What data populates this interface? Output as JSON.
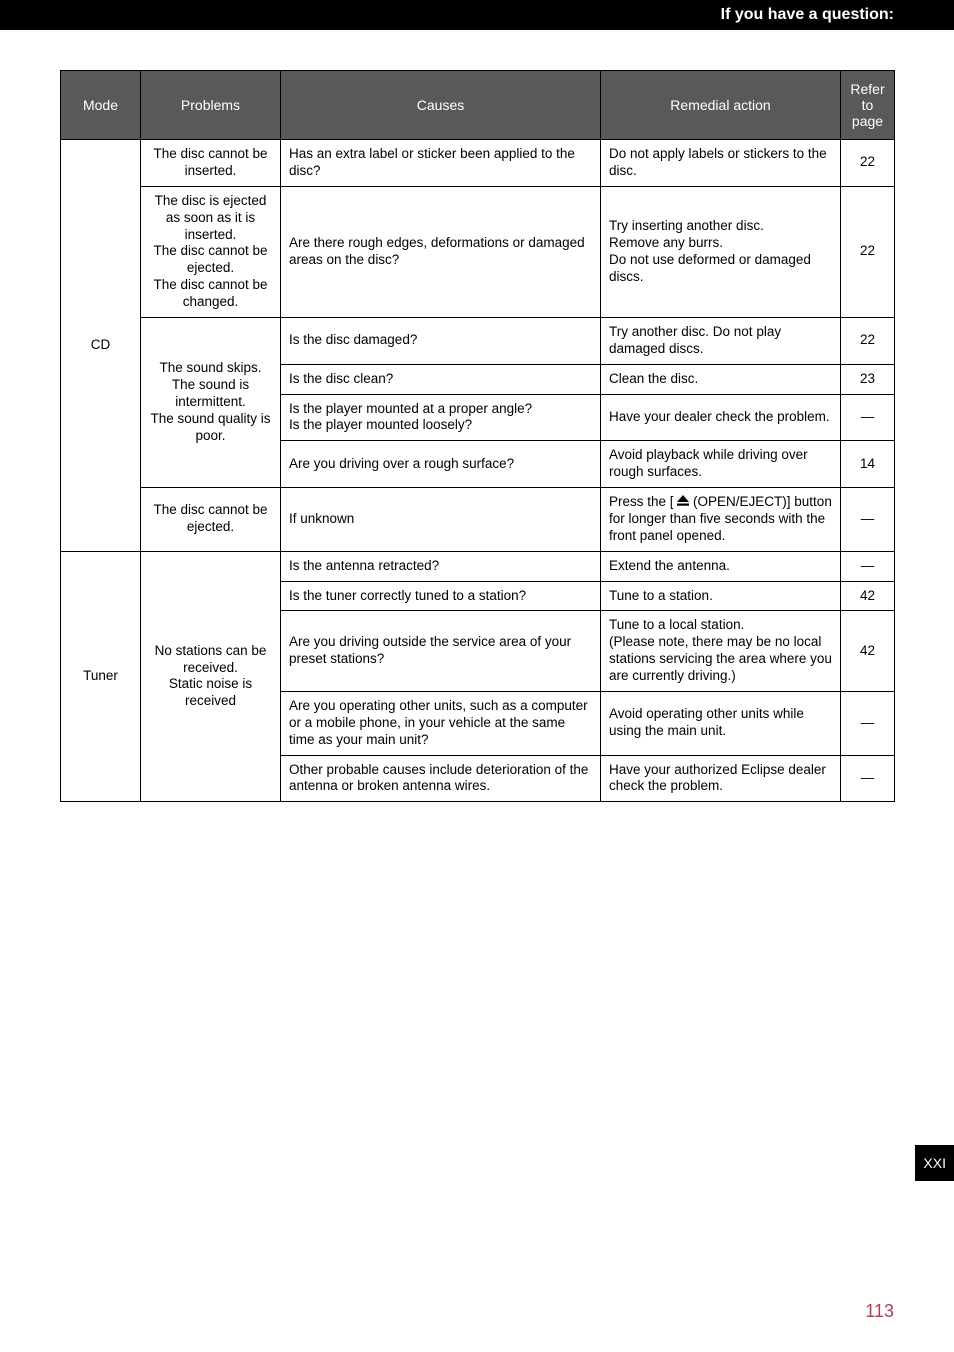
{
  "topbar": {
    "title": "If you have a question:"
  },
  "header": {
    "mode": "Mode",
    "problems": "Problems",
    "causes": "Causes",
    "remedial": "Remedial action",
    "refer": "Refer to page"
  },
  "modes": {
    "cd": "CD",
    "tuner": "Tuner"
  },
  "problems": {
    "cd_insert": "The disc cannot be inserted.",
    "cd_eject_multi": "The disc is ejected as soon as it is inserted.\nThe disc cannot be ejected.\nThe disc cannot be changed.",
    "cd_skips": "The sound skips.\nThe sound is intermittent.\nThe sound quality is poor.",
    "cd_noeject": "The disc cannot be ejected.",
    "tuner": "No stations can be received.\nStatic noise is received"
  },
  "rows": {
    "r1": {
      "cause": "Has an extra label or sticker been applied to the disc?",
      "remedy": "Do not apply labels or stickers to the disc.",
      "page": "22"
    },
    "r2": {
      "cause": "Are there rough edges, deformations or damaged areas on the disc?",
      "remedy": "Try inserting another disc.\nRemove any burrs.\nDo not use deformed or damaged discs.",
      "page": "22"
    },
    "r3": {
      "cause": "Is the disc damaged?",
      "remedy": "Try another disc. Do not play damaged discs.",
      "page": "22"
    },
    "r4": {
      "cause": "Is the disc clean?",
      "remedy": "Clean the disc.",
      "page": "23"
    },
    "r5": {
      "cause": "Is the player mounted at a proper angle?\nIs the player mounted loosely?",
      "remedy": "Have your dealer check the problem.",
      "page": "—"
    },
    "r6": {
      "cause": "Are you driving over a rough surface?",
      "remedy": "Avoid playback while driving over rough surfaces.",
      "page": "14"
    },
    "r7": {
      "cause": "If unknown",
      "remedy_pre": "Press the [ ",
      "remedy_post": " (OPEN/EJECT)] button for longer than five seconds with the front panel opened.",
      "page": "—"
    },
    "r8": {
      "cause": "Is the antenna retracted?",
      "remedy": "Extend the antenna.",
      "page": "—"
    },
    "r9": {
      "cause": "Is the tuner correctly tuned to a station?",
      "remedy": "Tune to a station.",
      "page": "42"
    },
    "r10": {
      "cause": "Are you driving outside the service area of your preset stations?",
      "remedy": "Tune to a local station.\n(Please note, there may be no local stations servicing the area where you are currently driving.)",
      "page": "42"
    },
    "r11": {
      "cause": "Are you operating other units, such as a computer or a mobile phone, in your vehicle at the same time as your main unit?",
      "remedy": "Avoid operating other units while using the main unit.",
      "page": "—"
    },
    "r12": {
      "cause": "Other probable causes include deterioration of the antenna or broken antenna wires.",
      "remedy": "Have your authorized Eclipse dealer check the problem.",
      "page": "—"
    }
  },
  "sidetab": "XXI",
  "pagenum": "113",
  "eject_icon_name": "eject-icon"
}
